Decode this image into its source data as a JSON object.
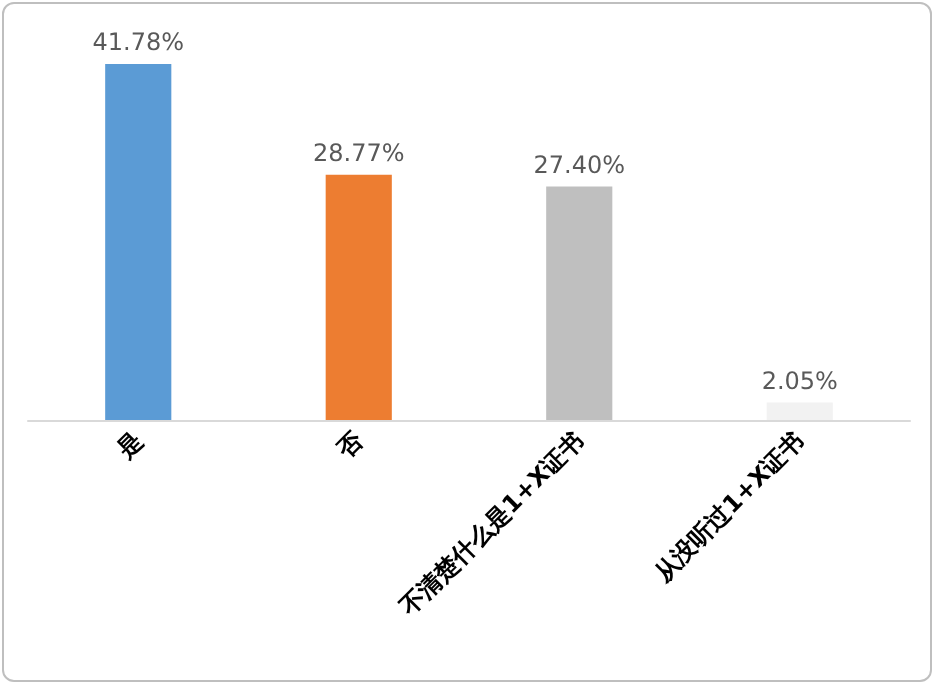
{
  "chart_data": {
    "type": "bar",
    "categories": [
      "是",
      "否",
      "不清楚什么是1+X证书",
      "从没听过1+X证书"
    ],
    "values": [
      41.78,
      28.77,
      27.4,
      2.05
    ],
    "colors": [
      "#5b9bd5",
      "#ed7d31",
      "#bfbfbf",
      "#f2f2f2"
    ],
    "value_labels": [
      "41.78%",
      "28.77%",
      "27.40%",
      "2.05%"
    ]
  }
}
